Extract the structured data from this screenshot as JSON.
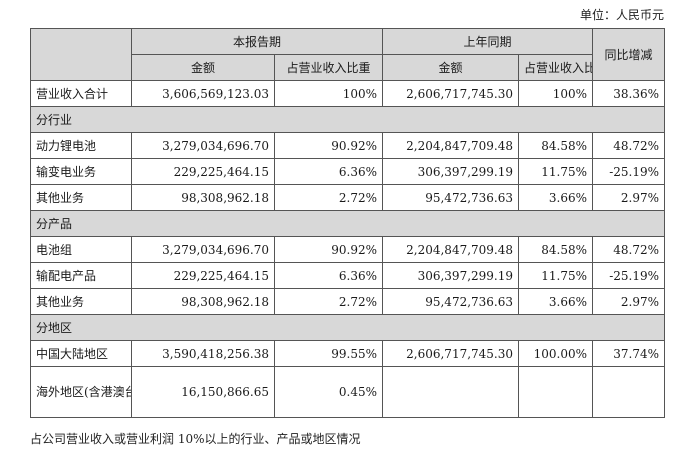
{
  "unit_text": "单位：人民币元",
  "headers": {
    "period_current": "本报告期",
    "period_prior": "上年同期",
    "yoy": "同比增减",
    "amount": "金额",
    "share": "占营业收入比重"
  },
  "total_row": {
    "label": "营业收入合计",
    "cur_amount": "3,606,569,123.03",
    "cur_share": "100%",
    "prior_amount": "2,606,717,745.30",
    "prior_share": "100%",
    "yoy": "38.36%"
  },
  "sections": {
    "industry": "分行业",
    "product": "分产品",
    "region": "分地区"
  },
  "industry_rows": [
    {
      "label": "动力锂电池",
      "cur_amount": "3,279,034,696.70",
      "cur_share": "90.92%",
      "prior_amount": "2,204,847,709.48",
      "prior_share": "84.58%",
      "yoy": "48.72%"
    },
    {
      "label": "输变电业务",
      "cur_amount": "229,225,464.15",
      "cur_share": "6.36%",
      "prior_amount": "306,397,299.19",
      "prior_share": "11.75%",
      "yoy": "-25.19%"
    },
    {
      "label": "其他业务",
      "cur_amount": "98,308,962.18",
      "cur_share": "2.72%",
      "prior_amount": "95,472,736.63",
      "prior_share": "3.66%",
      "yoy": "2.97%"
    }
  ],
  "product_rows": [
    {
      "label": "电池组",
      "cur_amount": "3,279,034,696.70",
      "cur_share": "90.92%",
      "prior_amount": "2,204,847,709.48",
      "prior_share": "84.58%",
      "yoy": "48.72%"
    },
    {
      "label": "输配电产品",
      "cur_amount": "229,225,464.15",
      "cur_share": "6.36%",
      "prior_amount": "306,397,299.19",
      "prior_share": "11.75%",
      "yoy": "-25.19%"
    },
    {
      "label": "其他业务",
      "cur_amount": "98,308,962.18",
      "cur_share": "2.72%",
      "prior_amount": "95,472,736.63",
      "prior_share": "3.66%",
      "yoy": "2.97%"
    }
  ],
  "region_rows": [
    {
      "label": "中国大陆地区",
      "cur_amount": "3,590,418,256.38",
      "cur_share": "99.55%",
      "prior_amount": "2,606,717,745.30",
      "prior_share": "100.00%",
      "yoy": "37.74%"
    },
    {
      "label": "海外地区(含港澳台)",
      "cur_amount": "16,150,866.65",
      "cur_share": "0.45%",
      "prior_amount": "",
      "prior_share": "",
      "yoy": ""
    }
  ],
  "footnote": "占公司营业收入或营业利润 10%以上的行业、产品或地区情况"
}
